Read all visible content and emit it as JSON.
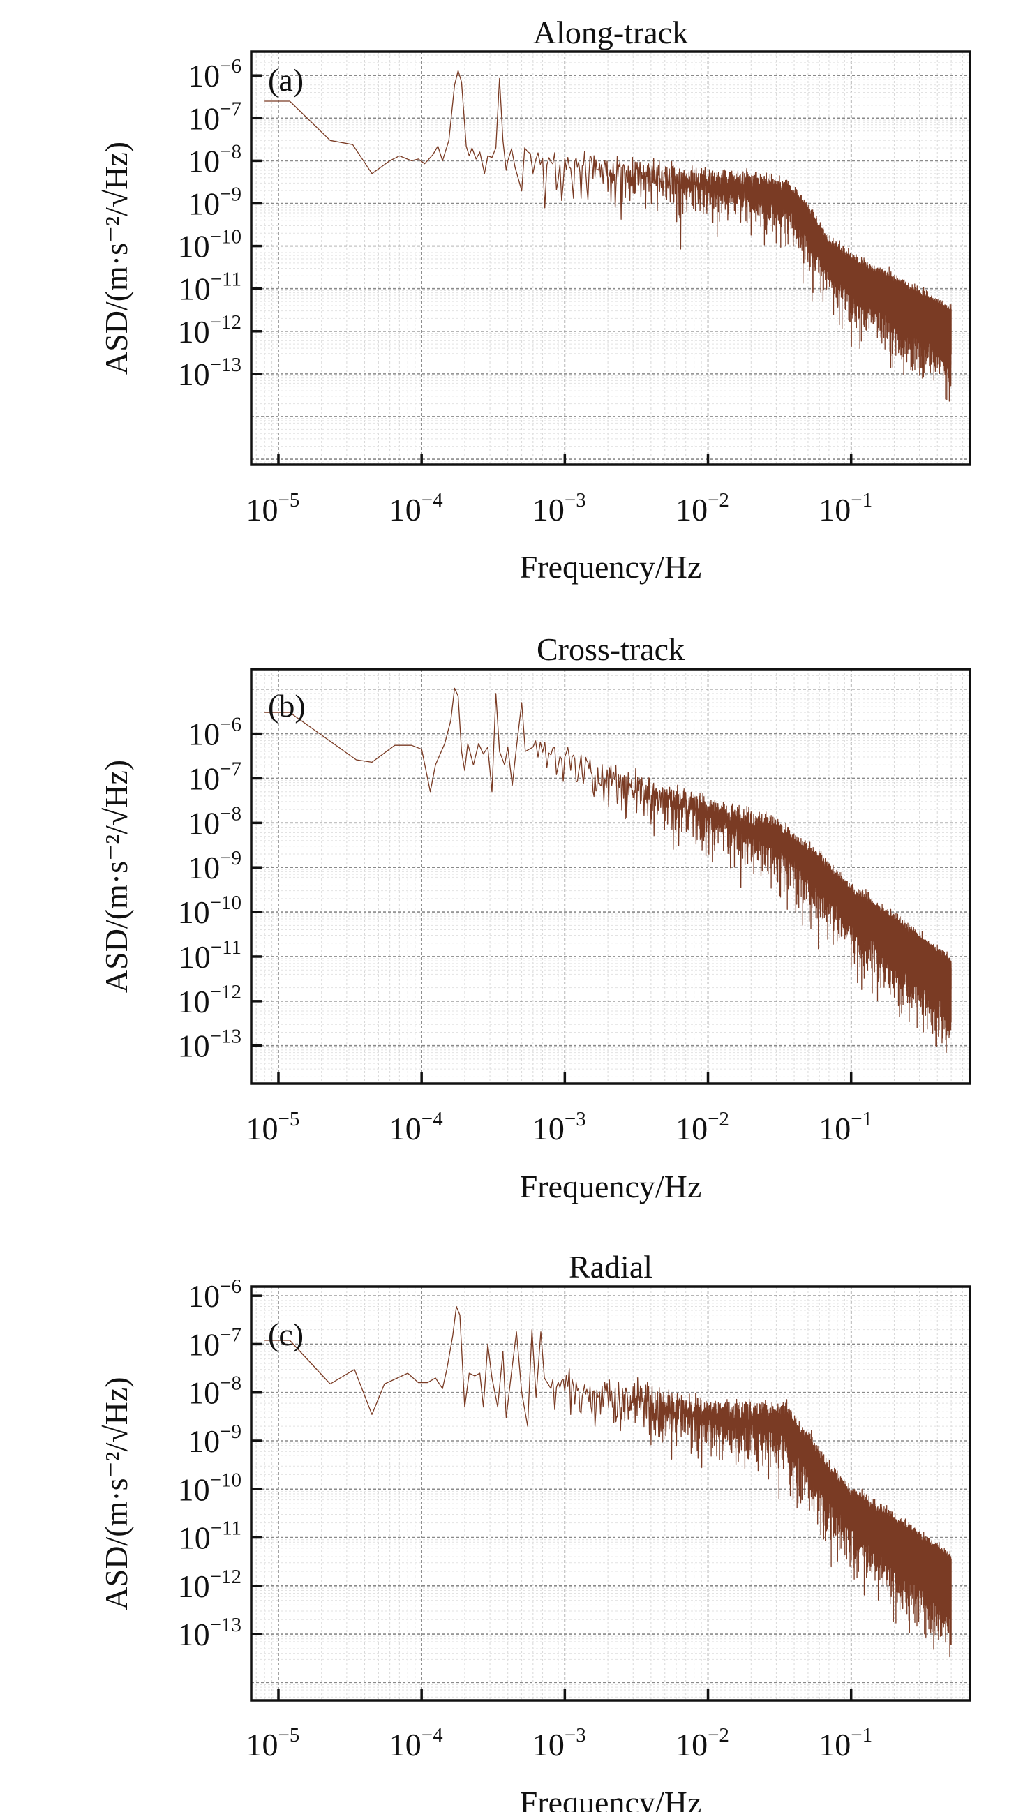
{
  "chart_data": [
    {
      "type": "line",
      "title": "Along-track",
      "panel_label": "(a)",
      "xlabel": "Frequency/Hz",
      "ylabel": "ASD/(m·s⁻²/√Hz)",
      "xscale": "log",
      "yscale": "log",
      "xlim_log10": [
        -5.19,
        -0.17
      ],
      "ylim_log10": [
        -15.13,
        -5.44
      ],
      "tick_base": "10",
      "x_tick_exponents": [
        "−5",
        "−4",
        "−3",
        "−2",
        "−1"
      ],
      "y_tick_exponents": [
        "−6",
        "−7",
        "−8",
        "−9",
        "−10",
        "−11",
        "−12",
        "−13"
      ],
      "grid": true,
      "color": "#7a3b24",
      "low_freq_points": [
        [
          8e-06,
          2.5e-07
        ],
        [
          1.2e-05,
          2.5e-07
        ],
        [
          2.3e-05,
          3e-08
        ],
        [
          3.3e-05,
          2.4e-08
        ],
        [
          4.5e-05,
          5e-09
        ],
        [
          6e-05,
          1e-08
        ],
        [
          7e-05,
          1.3e-08
        ],
        [
          8.5e-05,
          1e-08
        ],
        [
          9.5e-05,
          1.1e-08
        ],
        [
          0.000105,
          8.5e-09
        ],
        [
          0.00012,
          1.4e-08
        ],
        [
          0.00013,
          2.2e-08
        ],
        [
          0.00014,
          1e-08
        ],
        [
          0.000155,
          3e-08
        ],
        [
          0.00017,
          6e-07
        ],
        [
          0.00018,
          1.3e-06
        ],
        [
          0.00019,
          7e-07
        ],
        [
          0.000205,
          2.2e-08
        ],
        [
          0.000215,
          1.3e-08
        ],
        [
          0.000225,
          2e-08
        ],
        [
          0.00024,
          1.1e-08
        ],
        [
          0.000255,
          1.6e-08
        ],
        [
          0.000275,
          5e-09
        ],
        [
          0.00029,
          1.3e-08
        ],
        [
          0.00031,
          1.2e-08
        ],
        [
          0.00033,
          2e-08
        ],
        [
          0.00035,
          8.5e-07
        ],
        [
          0.00037,
          3e-08
        ],
        [
          0.00039,
          6e-09
        ],
        [
          0.0004,
          1e-08
        ]
      ],
      "noise_trend": [
        [
          0.0004,
          1e-08
        ],
        [
          0.001,
          8e-09
        ],
        [
          0.003,
          5e-09
        ],
        [
          0.01,
          2.5e-09
        ],
        [
          0.035,
          1.6e-09
        ],
        [
          0.05,
          4e-10
        ],
        [
          0.07,
          6e-11
        ],
        [
          0.1,
          2.5e-11
        ],
        [
          0.2,
          7e-12
        ],
        [
          0.5,
          1.2e-12
        ]
      ],
      "x_end": 0.5
    },
    {
      "type": "line",
      "title": "Cross-track",
      "panel_label": "(b)",
      "xlabel": "Frequency/Hz",
      "ylabel": "ASD/(m·s⁻²/√Hz)",
      "xscale": "log",
      "yscale": "log",
      "xlim_log10": [
        -5.19,
        -0.17
      ],
      "ylim_log10": [
        -13.85,
        -4.55
      ],
      "tick_base": "10",
      "x_tick_exponents": [
        "−5",
        "−4",
        "−3",
        "−2",
        "−1"
      ],
      "y_tick_exponents": [
        "−6",
        "−7",
        "−8",
        "−9",
        "−10",
        "−11",
        "−12",
        "−13"
      ],
      "grid": true,
      "color": "#7a3b24",
      "low_freq_points": [
        [
          8e-06,
          3e-06
        ],
        [
          1.2e-05,
          3e-06
        ],
        [
          3.5e-05,
          2.6e-07
        ],
        [
          4.5e-05,
          2.3e-07
        ],
        [
          6.5e-05,
          5.5e-07
        ],
        [
          8.5e-05,
          5.5e-07
        ],
        [
          0.0001,
          4.5e-07
        ],
        [
          0.00011,
          1e-07
        ],
        [
          0.000115,
          5e-08
        ],
        [
          0.000125,
          2e-07
        ],
        [
          0.000145,
          6e-07
        ],
        [
          0.00016,
          2e-06
        ],
        [
          0.00017,
          1.05e-05
        ],
        [
          0.00018,
          7e-06
        ],
        [
          0.00019,
          4e-07
        ],
        [
          0.0002,
          1.5e-07
        ],
        [
          0.00021,
          6e-07
        ],
        [
          0.00023,
          2e-07
        ],
        [
          0.00025,
          6e-07
        ],
        [
          0.00027,
          3.5e-07
        ],
        [
          0.00029,
          5e-07
        ],
        [
          0.00031,
          5e-08
        ],
        [
          0.00033,
          8e-06
        ],
        [
          0.00035,
          4e-07
        ],
        [
          0.00038,
          2e-07
        ],
        [
          0.0004,
          5e-07
        ],
        [
          0.00043,
          7e-08
        ],
        [
          0.00046,
          5e-07
        ],
        [
          0.0005,
          5e-06
        ],
        [
          0.00053,
          4e-07
        ],
        [
          0.0006,
          5e-07
        ]
      ],
      "noise_trend": [
        [
          0.0006,
          4e-07
        ],
        [
          0.001,
          2.5e-07
        ],
        [
          0.003,
          6e-08
        ],
        [
          0.01,
          1.6e-08
        ],
        [
          0.03,
          5e-09
        ],
        [
          0.06,
          8e-10
        ],
        [
          0.1,
          1.5e-10
        ],
        [
          0.2,
          3e-11
        ],
        [
          0.5,
          3e-12
        ]
      ],
      "x_end": 0.5
    },
    {
      "type": "line",
      "title": "Radial",
      "panel_label": "(c)",
      "xlabel": "Frequency/Hz",
      "ylabel": "ASD/(m·s⁻²/√Hz)",
      "xscale": "log",
      "yscale": "log",
      "xlim_log10": [
        -5.19,
        -0.17
      ],
      "ylim_log10": [
        -14.37,
        -5.81
      ],
      "tick_base": "10",
      "x_tick_exponents": [
        "−5",
        "−4",
        "−3",
        "−2",
        "−1"
      ],
      "y_tick_exponents": [
        "−6",
        "−7",
        "−8",
        "−9",
        "−10",
        "−11",
        "−12",
        "−13"
      ],
      "grid": true,
      "color": "#7a3b24",
      "low_freq_points": [
        [
          8e-06,
          1.2e-07
        ],
        [
          1.2e-05,
          1.2e-07
        ],
        [
          2.3e-05,
          1.5e-08
        ],
        [
          3.4e-05,
          3e-08
        ],
        [
          4.5e-05,
          3.5e-09
        ],
        [
          5.5e-05,
          1.5e-08
        ],
        [
          8e-05,
          2.5e-08
        ],
        [
          9.5e-05,
          1.6e-08
        ],
        [
          0.00011,
          1.6e-08
        ],
        [
          0.000125,
          2e-08
        ],
        [
          0.00014,
          1.2e-08
        ],
        [
          0.00015,
          3e-08
        ],
        [
          0.000165,
          1.5e-07
        ],
        [
          0.000175,
          6e-07
        ],
        [
          0.000185,
          4e-07
        ],
        [
          0.0002,
          5e-09
        ],
        [
          0.000215,
          2.5e-08
        ],
        [
          0.000235,
          2.2e-08
        ],
        [
          0.000255,
          2.5e-08
        ],
        [
          0.00027,
          5e-09
        ],
        [
          0.00029,
          1e-07
        ],
        [
          0.00031,
          2e-08
        ],
        [
          0.00034,
          5e-09
        ],
        [
          0.00037,
          7e-08
        ],
        [
          0.00039,
          3e-09
        ],
        [
          0.00042,
          2e-08
        ],
        [
          0.00046,
          1.8e-07
        ],
        [
          0.0005,
          1e-08
        ],
        [
          0.00055,
          2e-09
        ],
        [
          0.00059,
          2e-07
        ],
        [
          0.00063,
          8e-09
        ],
        [
          0.00068,
          1.8e-07
        ],
        [
          0.00072,
          2e-08
        ],
        [
          0.0008,
          1.2e-08
        ]
      ],
      "noise_trend": [
        [
          0.0008,
          1.2e-08
        ],
        [
          0.001,
          1.1e-08
        ],
        [
          0.003,
          7e-09
        ],
        [
          0.01,
          3e-09
        ],
        [
          0.035,
          2.2e-09
        ],
        [
          0.05,
          6e-10
        ],
        [
          0.07,
          1.2e-10
        ],
        [
          0.1,
          4e-11
        ],
        [
          0.2,
          1e-11
        ],
        [
          0.5,
          1.5e-12
        ]
      ],
      "x_end": 0.5
    }
  ]
}
